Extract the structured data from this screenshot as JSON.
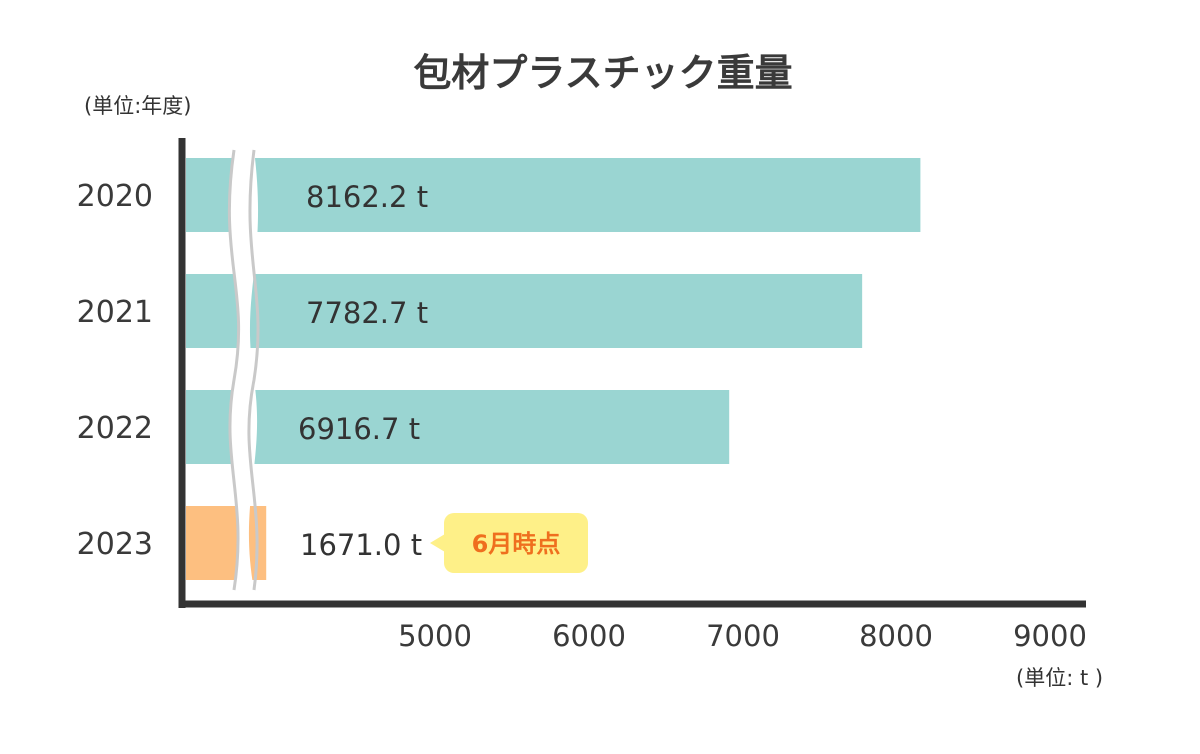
{
  "chart_data": {
    "type": "bar",
    "orientation": "horizontal",
    "title": "包材プラスチック重量",
    "y_unit_label": "(単位:年度)",
    "x_unit_label": "(単位: t )",
    "categories": [
      "2020",
      "2021",
      "2022",
      "2023"
    ],
    "values": [
      8162.2,
      7782.7,
      6916.7,
      1671.0
    ],
    "value_labels": [
      "8162.2 t",
      "7782.7 t",
      "6916.7 t",
      "1671.0 t"
    ],
    "x_ticks": [
      "5000",
      "6000",
      "7000",
      "8000",
      "9000"
    ],
    "axis_break": true,
    "grid": false,
    "bar_colors": [
      "#9ad5d2",
      "#9ad5d2",
      "#9ad5d2",
      "#fdbf80"
    ],
    "annotation": {
      "category": "2023",
      "text": "6月時点",
      "bg_color": "#fef088",
      "text_color": "#ef6f1e"
    }
  }
}
